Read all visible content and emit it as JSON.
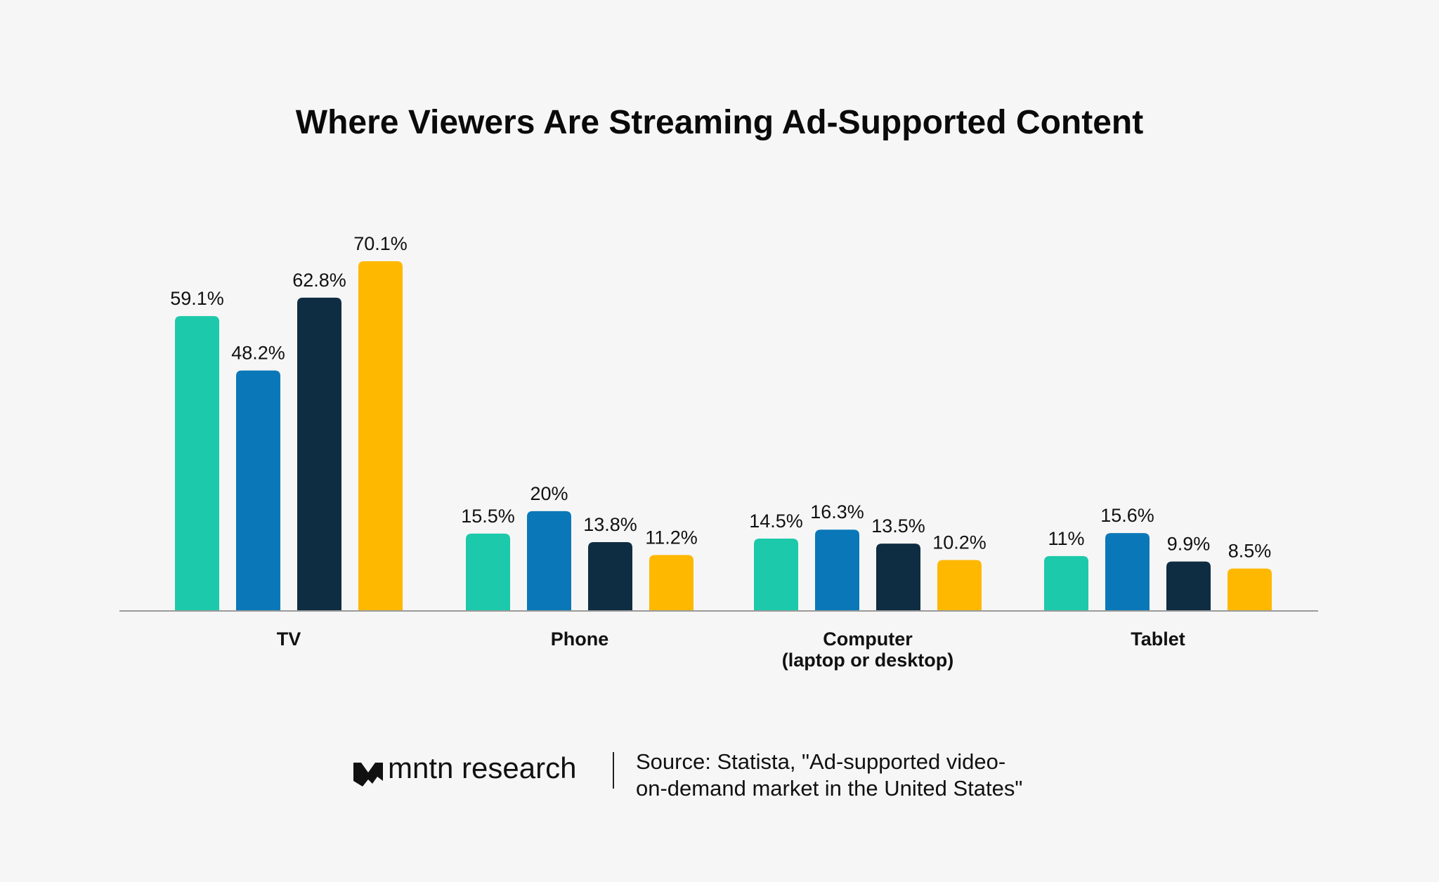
{
  "chart_data": {
    "type": "bar",
    "title": "Where Viewers Are Streaming Ad-Supported Content",
    "categories": [
      [
        "TV"
      ],
      [
        "Phone"
      ],
      [
        "Computer",
        "(laptop or desktop)"
      ],
      [
        "Tablet"
      ]
    ],
    "series": [
      {
        "values": [
          59.1,
          15.5,
          14.5,
          11.0
        ],
        "labels": [
          "59.1%",
          "15.5%",
          "14.5%",
          "11%"
        ],
        "color": "#1cc9aa"
      },
      {
        "values": [
          48.2,
          20.0,
          16.3,
          15.6
        ],
        "labels": [
          "48.2%",
          "20%",
          "16.3%",
          "15.6%"
        ],
        "color": "#0a78b8"
      },
      {
        "values": [
          62.8,
          13.8,
          13.5,
          9.9
        ],
        "labels": [
          "62.8%",
          "13.8%",
          "13.5%",
          "9.9%"
        ],
        "color": "#0f2d42"
      },
      {
        "values": [
          70.1,
          11.2,
          10.2,
          8.5
        ],
        "labels": [
          "70.1%",
          "11.2%",
          "10.2%",
          "8.5%"
        ],
        "color": "#ffb800"
      }
    ],
    "ylim": [
      0,
      75
    ],
    "grid": false,
    "legend": "none",
    "xlabel": "",
    "ylabel": ""
  },
  "footer": {
    "logo": "mntn research",
    "source_lines": [
      "Source: Statista, \"Ad-supported video-",
      "on-demand market in the United States\""
    ]
  },
  "colors": {
    "background": "#f6f6f6",
    "axis": "#9a9a9a"
  }
}
